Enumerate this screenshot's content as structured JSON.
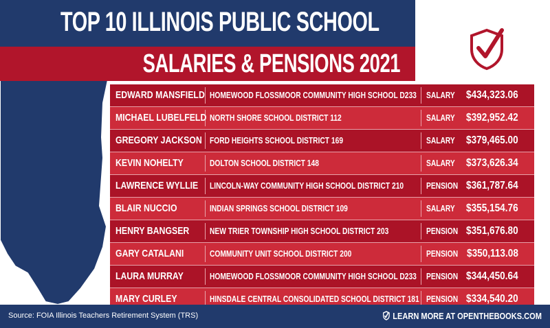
{
  "title": {
    "line1": "TOP 10 ILLINOIS PUBLIC SCHOOL",
    "line2": "SALARIES & PENSIONS 2021"
  },
  "logo": {
    "icon": "shield-check-icon",
    "color": "#b1152b"
  },
  "colors": {
    "navy": "#213a6c",
    "red_dark": "#ab1327",
    "red_light": "#cd2b3a"
  },
  "rows": [
    {
      "name": "EDWARD MANSFIELD",
      "school": "HOMEWOOD FLOSSMOOR COMMUNITY HIGH SCHOOL D233",
      "type": "SALARY",
      "amount": "$434,323.06"
    },
    {
      "name": "MICHAEL LUBELFELD",
      "school": "NORTH SHORE SCHOOL DISTRICT 112",
      "type": "SALARY",
      "amount": "$392,952.42"
    },
    {
      "name": "GREGORY JACKSON",
      "school": "FORD HEIGHTS SCHOOL DISTRICT 169",
      "type": "SALARY",
      "amount": "$379,465.00"
    },
    {
      "name": "KEVIN NOHELTY",
      "school": "DOLTON SCHOOL DISTRICT 148",
      "type": "SALARY",
      "amount": "$373,626.34"
    },
    {
      "name": "LAWRENCE WYLLIE",
      "school": "LINCOLN-WAY COMMUNITY HIGH SCHOOL DISTRICT 210",
      "type": "PENSION",
      "amount": "$361,787.64"
    },
    {
      "name": "BLAIR NUCCIO",
      "school": "INDIAN SPRINGS SCHOOL DISTRICT 109",
      "type": "SALARY",
      "amount": "$355,154.76"
    },
    {
      "name": "HENRY BANGSER",
      "school": "NEW TRIER TOWNSHIP HIGH SCHOOL DISTRICT 203",
      "type": "PENSION",
      "amount": "$351,676.80"
    },
    {
      "name": "GARY CATALANI",
      "school": "COMMUNITY UNIT SCHOOL DISTRICT 200",
      "type": "PENSION",
      "amount": "$350,113.08"
    },
    {
      "name": "LAURA MURRAY",
      "school": "HOMEWOOD FLOSSMOOR COMMUNITY HIGH SCHOOL D233",
      "type": "PENSION",
      "amount": "$344,450.64"
    },
    {
      "name": "MARY CURLEY",
      "school": "HINSDALE CENTRAL CONSOLIDATED SCHOOL DISTRICT 181",
      "type": "PENSION",
      "amount": "$334,540.20"
    }
  ],
  "footer": {
    "source": "Source: FOIA Illinois Teachers Retirement System (TRS)",
    "cta": "LEARN MORE AT OPENTHEBOOKS.COM",
    "cta_icon": "check-shield-icon"
  }
}
